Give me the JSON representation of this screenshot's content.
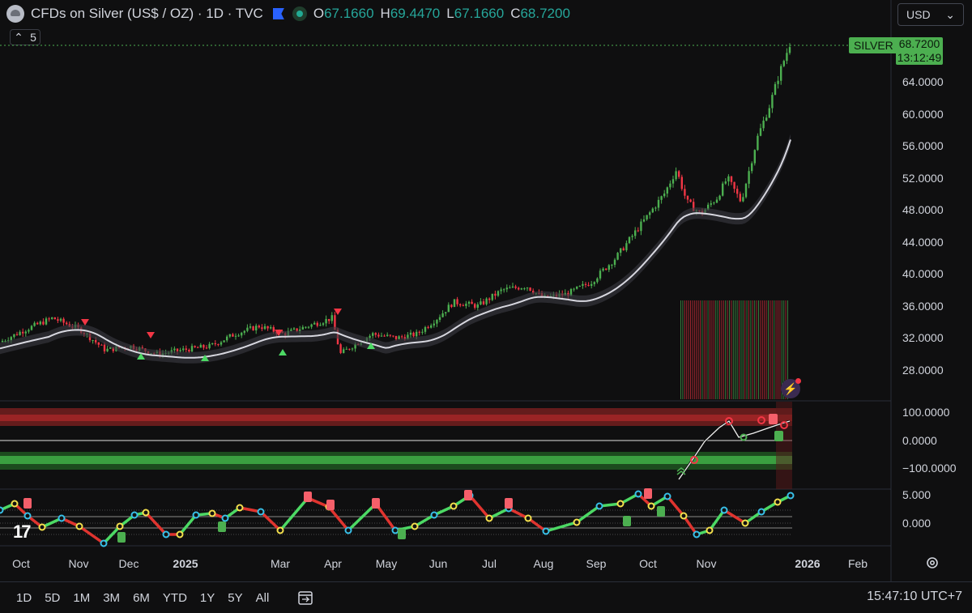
{
  "header": {
    "title": "CFDs on Silver (US$ / OZ) · 1D · TVC",
    "open_label": "O",
    "open": "67.1660",
    "high_label": "H",
    "high": "69.4470",
    "low_label": "L",
    "low": "67.1660",
    "close_label": "C",
    "close": "68.7200"
  },
  "currency": "USD",
  "indicators_count": "5",
  "last_price": {
    "symbol": "SILVER",
    "price": "68.7200",
    "countdown": "13:12:49"
  },
  "price_axis": [
    "64.0000",
    "60.0000",
    "56.0000",
    "52.0000",
    "48.0000",
    "44.0000",
    "40.0000",
    "36.0000",
    "32.0000",
    "28.0000"
  ],
  "osc1_axis": [
    "100.0000",
    "0.0000",
    "−100.0000"
  ],
  "osc2_axis": [
    "5.000",
    "0.000"
  ],
  "time_axis": [
    "Oct",
    "Nov",
    "Dec",
    "2025",
    "Mar",
    "Apr",
    "May",
    "Jun",
    "Jul",
    "Aug",
    "Sep",
    "Oct",
    "Nov",
    "2026",
    "Feb"
  ],
  "timeframes": [
    "1D",
    "5D",
    "1M",
    "3M",
    "6M",
    "YTD",
    "1Y",
    "5Y",
    "All"
  ],
  "clock": "15:47:10 UTC+7",
  "logo_text": "17",
  "colors": {
    "up": "#4caf50",
    "down": "#f23645",
    "accent": "#2962ff",
    "ma": "#d8d8e0"
  },
  "chart_data": {
    "type": "line",
    "title": "CFDs on Silver (US$ / OZ)",
    "x": [
      "Oct 2024",
      "Nov 2024",
      "Dec 2024",
      "Jan 2025",
      "Feb 2025",
      "Mar 2025",
      "Apr 2025",
      "May 2025",
      "Jun 2025",
      "Jul 2025",
      "Aug 2025",
      "Sep 2025",
      "Oct 2025",
      "Nov 2025",
      "Dec 2025"
    ],
    "series": [
      {
        "name": "",
        "values": [
          31.5,
          32.5,
          30.0,
          30.5,
          32.5,
          33.5,
          30.5,
          32.5,
          36.0,
          37.0,
          38.5,
          42.5,
          48.5,
          49.0,
          68.72
        ]
      }
    ],
    "ylim": [
      26,
      70
    ]
  }
}
